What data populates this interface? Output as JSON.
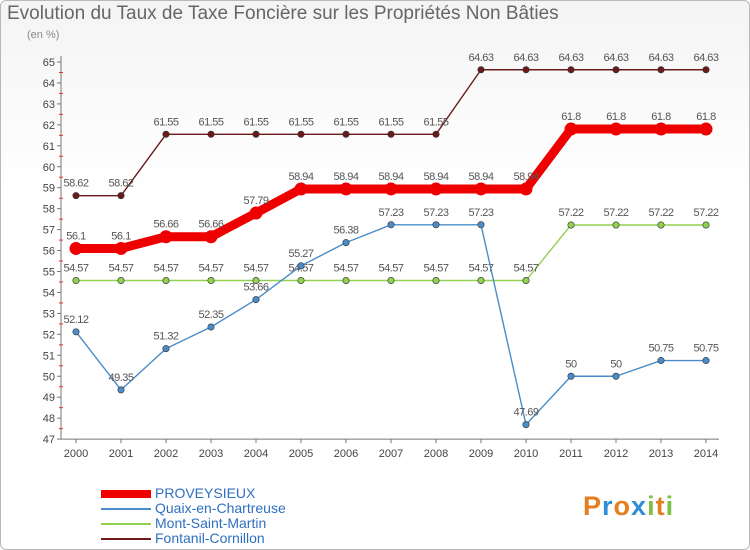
{
  "chart_data": {
    "type": "line",
    "title": "Evolution du Taux de Taxe Foncière sur les Propriétés Non Bâties",
    "ylabel": "(en %)",
    "x": [
      "2000",
      "2001",
      "2002",
      "2003",
      "2004",
      "2005",
      "2006",
      "2007",
      "2008",
      "2009",
      "2010",
      "2011",
      "2012",
      "2013",
      "2014"
    ],
    "ylim": [
      47,
      65
    ],
    "yticks": [
      "47",
      "48",
      "49",
      "50",
      "51",
      "52",
      "53",
      "54",
      "55",
      "56",
      "57",
      "58",
      "59",
      "60",
      "61",
      "62",
      "63",
      "64",
      "65"
    ],
    "series": [
      {
        "name": "Fontanil-Cornillon",
        "color": "#6b1a1a",
        "values": [
          58.62,
          58.62,
          61.55,
          61.55,
          61.55,
          61.55,
          61.55,
          61.55,
          61.55,
          64.63,
          64.63,
          64.63,
          64.63,
          64.63,
          64.63
        ],
        "labels": [
          "58.62",
          "58.62",
          "61.55",
          "61.55",
          "61.55",
          "61.55",
          "61.55",
          "61.55",
          "61.55",
          "64.63",
          "64.63",
          "64.63",
          "64.63",
          "64.63",
          "64.63"
        ]
      },
      {
        "name": "Mont-Saint-Martin",
        "color": "#92d050",
        "values": [
          54.57,
          54.57,
          54.57,
          54.57,
          54.57,
          54.57,
          54.57,
          54.57,
          54.57,
          54.57,
          54.57,
          57.22,
          57.22,
          57.22,
          57.22
        ],
        "labels": [
          "54.57",
          "54.57",
          "54.57",
          "54.57",
          "54.57",
          "54.57",
          "54.57",
          "54.57",
          "54.57",
          "54.57",
          "54.57",
          "57.22",
          "57.22",
          "57.22",
          "57.22"
        ]
      },
      {
        "name": "Quaix-en-Chartreuse",
        "color": "#4a8cc8",
        "values": [
          52.12,
          49.35,
          51.32,
          52.35,
          53.66,
          55.27,
          56.38,
          57.23,
          57.23,
          57.23,
          47.69,
          50,
          50,
          50.75,
          50.75
        ],
        "labels": [
          "52.12",
          "49.35",
          "51.32",
          "52.35",
          "53.66",
          "55.27",
          "56.38",
          "57.23",
          "57.23",
          "57.23",
          "47.69",
          "50",
          "50",
          "50.75",
          "50.75"
        ]
      },
      {
        "name": "PROVEYSIEUX",
        "color": "#ee0000",
        "values": [
          56.1,
          56.1,
          56.66,
          56.66,
          57.79,
          58.94,
          58.94,
          58.94,
          58.94,
          58.94,
          58.94,
          61.8,
          61.8,
          61.8,
          61.8
        ],
        "labels": [
          "56.1",
          "56.1",
          "56.66",
          "56.66",
          "57.79",
          "58.94",
          "58.94",
          "58.94",
          "58.94",
          "58.94",
          "58.94",
          "61.8",
          "61.8",
          "61.8",
          "61.8"
        ]
      }
    ],
    "legend": [
      "PROVEYSIEUX",
      "Quaix-en-Chartreuse",
      "Mont-Saint-Martin",
      "Fontanil-Cornillon"
    ],
    "grid": false,
    "legend_position": "bottom-left"
  },
  "logo": {
    "text": "Proxiti",
    "letters": [
      "P",
      "r",
      "o",
      "x",
      "i",
      "t",
      "i"
    ],
    "colors": [
      "#e67e22",
      "#2f8fd6",
      "#e67e22",
      "#2f8fd6",
      "#7cc242",
      "#e67e22",
      "#7cc242"
    ]
  }
}
